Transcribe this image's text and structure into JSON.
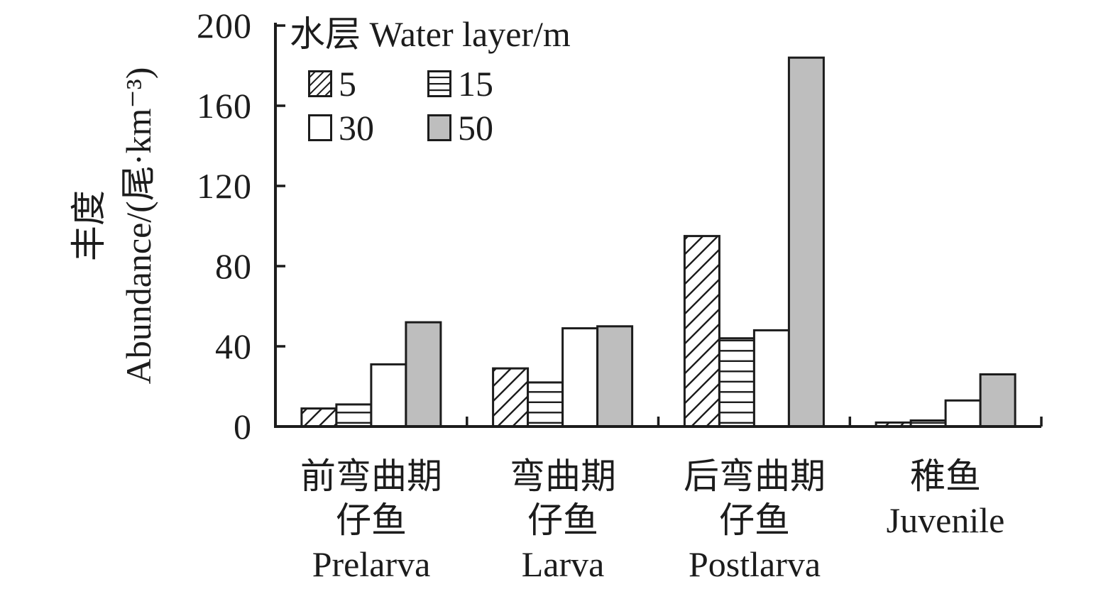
{
  "chart_data": {
    "type": "bar",
    "title": "",
    "legend": {
      "title": "水层 Water layer/m",
      "position": "top-left",
      "items": [
        {
          "label": "5",
          "style": "diagonal-hatch"
        },
        {
          "label": "15",
          "style": "horizontal-lines"
        },
        {
          "label": "30",
          "style": "white"
        },
        {
          "label": "50",
          "style": "gray"
        }
      ]
    },
    "ylabel": {
      "zh": "丰度",
      "en": "Abundance/(尾·km⁻³)"
    },
    "xlabel": "",
    "ylim": [
      0,
      200
    ],
    "yticks": [
      0,
      40,
      80,
      120,
      160,
      200
    ],
    "ytick_labels": [
      "0",
      "40",
      "80",
      "120",
      "160",
      "200"
    ],
    "grid": false,
    "categories": [
      {
        "key": "prelarva",
        "lines": [
          "前弯曲期",
          "仔鱼",
          "Prelarva"
        ]
      },
      {
        "key": "larva",
        "lines": [
          "弯曲期",
          "仔鱼",
          "Larva"
        ]
      },
      {
        "key": "postlarva",
        "lines": [
          "后弯曲期",
          "仔鱼",
          "Postlarva"
        ]
      },
      {
        "key": "juvenile",
        "lines": [
          "稚鱼",
          "Juvenile"
        ]
      }
    ],
    "series": [
      {
        "name": "5",
        "style": "diagonal-hatch",
        "values": [
          9,
          29,
          95,
          2
        ]
      },
      {
        "name": "15",
        "style": "horizontal-lines",
        "values": [
          11,
          22,
          44,
          3
        ]
      },
      {
        "name": "30",
        "style": "white",
        "values": [
          31,
          49,
          48,
          13
        ]
      },
      {
        "name": "50",
        "style": "gray",
        "values": [
          52,
          50,
          184,
          26
        ]
      }
    ],
    "colors": {
      "ink": "#1c1c1c",
      "bar_gray": "#bebebe",
      "background": "#ffffff"
    }
  }
}
